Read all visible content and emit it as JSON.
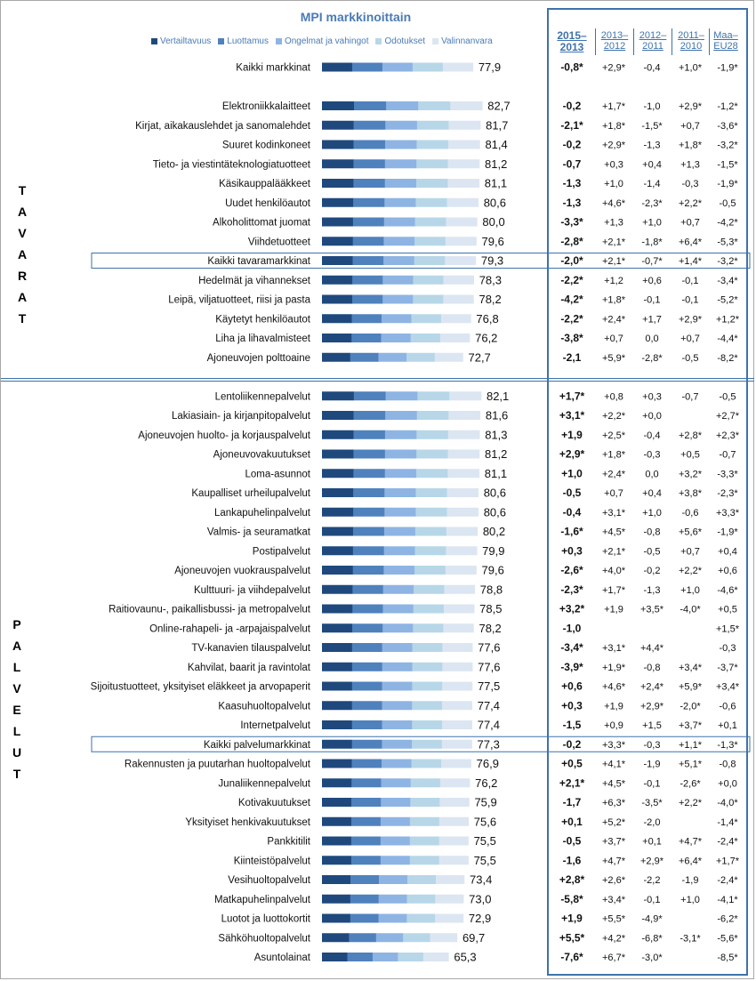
{
  "header": {
    "title": "MPI markkinoittain",
    "columns": [
      "2015–2013",
      "2013–2012",
      "2012–2011",
      "2011–2010",
      "Maa–EU28"
    ]
  },
  "legend": [
    {
      "name": "Vertailtavuus",
      "color": "#1f497d"
    },
    {
      "name": "Luottamus",
      "color": "#4f81bd"
    },
    {
      "name": "Ongelmat ja vahingot",
      "color": "#8eb4e3"
    },
    {
      "name": "Odotukset",
      "color": "#b7d7e8"
    },
    {
      "name": "Valinnanvara",
      "color": "#dce6f2"
    }
  ],
  "side_labels": {
    "goods": "TAVARAT",
    "services": "PALVELUT"
  },
  "chart_data": {
    "type": "bar",
    "title": "MPI markkinoittain",
    "series_names": [
      "Vertailtavuus",
      "Luottamus",
      "Ongelmat ja vahingot",
      "Odotukset",
      "Valinnanvara"
    ],
    "columns": [
      "2015–2013",
      "2013–2012",
      "2012–2011",
      "2011–2010",
      "Maa–EU28"
    ],
    "rows": [
      {
        "label": "Kaikki markkinat",
        "value": "77,9",
        "v": 77.9,
        "c": [
          "-0,8*",
          "+2,9*",
          "-0,4",
          "+1,0*",
          "-1,9*"
        ]
      },
      {
        "label": "",
        "value": "",
        "v": 0,
        "c": [
          "",
          "",
          "",
          "",
          ""
        ],
        "spacer": true
      },
      {
        "label": "Elektroniikkalaitteet",
        "value": "82,7",
        "v": 82.7,
        "c": [
          "-0,2",
          "+1,7*",
          "-1,0",
          "+2,9*",
          "-1,2*"
        ]
      },
      {
        "label": "Kirjat, aikakauslehdet ja sanomalehdet",
        "value": "81,7",
        "v": 81.7,
        "c": [
          "-2,1*",
          "+1,8*",
          "-1,5*",
          "+0,7",
          "-3,6*"
        ]
      },
      {
        "label": "Suuret kodinkoneet",
        "value": "81,4",
        "v": 81.4,
        "c": [
          "-0,2",
          "+2,9*",
          "-1,3",
          "+1,8*",
          "-3,2*"
        ]
      },
      {
        "label": "Tieto- ja viestintäteknologiatuotteet",
        "value": "81,2",
        "v": 81.2,
        "c": [
          "-0,7",
          "+0,3",
          "+0,4",
          "+1,3",
          "-1,5*"
        ]
      },
      {
        "label": "Käsikauppalääkkeet",
        "value": "81,1",
        "v": 81.1,
        "c": [
          "-1,3",
          "+1,0",
          "-1,4",
          "-0,3",
          "-1,9*"
        ]
      },
      {
        "label": "Uudet henkilöautot",
        "value": "80,6",
        "v": 80.6,
        "c": [
          "-1,3",
          "+4,6*",
          "-2,3*",
          "+2,2*",
          "-0,5"
        ]
      },
      {
        "label": "Alkoholittomat juomat",
        "value": "80,0",
        "v": 80.0,
        "c": [
          "-3,3*",
          "+1,3",
          "+1,0",
          "+0,7",
          "-4,2*"
        ]
      },
      {
        "label": "Viihdetuotteet",
        "value": "79,6",
        "v": 79.6,
        "c": [
          "-2,8*",
          "+2,1*",
          "-1,8*",
          "+6,4*",
          "-5,3*"
        ]
      },
      {
        "label": "Kaikki tavaramarkkinat",
        "value": "79,3",
        "v": 79.3,
        "c": [
          "-2,0*",
          "+2,1*",
          "-0,7*",
          "+1,4*",
          "-3,2*"
        ],
        "boxed": true
      },
      {
        "label": "Hedelmät ja vihannekset",
        "value": "78,3",
        "v": 78.3,
        "c": [
          "-2,2*",
          "+1,2",
          "+0,6",
          "-0,1",
          "-3,4*"
        ]
      },
      {
        "label": "Leipä, viljatuotteet, riisi ja pasta",
        "value": "78,2",
        "v": 78.2,
        "c": [
          "-4,2*",
          "+1,8*",
          "-0,1",
          "-0,1",
          "-5,2*"
        ]
      },
      {
        "label": "Käytetyt henkilöautot",
        "value": "76,8",
        "v": 76.8,
        "c": [
          "-2,2*",
          "+2,4*",
          "+1,7",
          "+2,9*",
          "+1,2*"
        ]
      },
      {
        "label": "Liha ja lihavalmisteet",
        "value": "76,2",
        "v": 76.2,
        "c": [
          "-3,8*",
          "+0,7",
          "0,0",
          "+0,7",
          "-4,4*"
        ]
      },
      {
        "label": "Ajoneuvojen polttoaine",
        "value": "72,7",
        "v": 72.7,
        "c": [
          "-2,1",
          "+5,9*",
          "-2,8*",
          "-0,5",
          "-8,2*"
        ]
      },
      {
        "label": "",
        "value": "",
        "v": 0,
        "c": [
          "",
          "",
          "",
          "",
          ""
        ],
        "spacer": true
      },
      {
        "label": "Lentoliikennepalvelut",
        "value": "82,1",
        "v": 82.1,
        "c": [
          "+1,7*",
          "+0,8",
          "+0,3",
          "-0,7",
          "-0,5"
        ]
      },
      {
        "label": "Lakiasiain- ja kirjanpitopalvelut",
        "value": "81,6",
        "v": 81.6,
        "c": [
          "+3,1*",
          "+2,2*",
          "+0,0",
          "",
          "+2,7*"
        ]
      },
      {
        "label": "Ajoneuvojen huolto- ja korjauspalvelut",
        "value": "81,3",
        "v": 81.3,
        "c": [
          "+1,9",
          "+2,5*",
          "-0,4",
          "+2,8*",
          "+2,3*"
        ]
      },
      {
        "label": "Ajoneuvovakuutukset",
        "value": "81,2",
        "v": 81.2,
        "c": [
          "+2,9*",
          "+1,8*",
          "-0,3",
          "+0,5",
          "-0,7"
        ]
      },
      {
        "label": "Loma-asunnot",
        "value": "81,1",
        "v": 81.1,
        "c": [
          "+1,0",
          "+2,4*",
          "0,0",
          "+3,2*",
          "-3,3*"
        ]
      },
      {
        "label": "Kaupalliset urheilupalvelut",
        "value": "80,6",
        "v": 80.6,
        "c": [
          "-0,5",
          "+0,7",
          "+0,4",
          "+3,8*",
          "-2,3*"
        ]
      },
      {
        "label": "Lankapuhelinpalvelut",
        "value": "80,6",
        "v": 80.6,
        "c": [
          "-0,4",
          "+3,1*",
          "+1,0",
          "-0,6",
          "+3,3*"
        ]
      },
      {
        "label": "Valmis- ja seuramatkat",
        "value": "80,2",
        "v": 80.2,
        "c": [
          "-1,6*",
          "+4,5*",
          "-0,8",
          "+5,6*",
          "-1,9*"
        ]
      },
      {
        "label": "Postipalvelut",
        "value": "79,9",
        "v": 79.9,
        "c": [
          "+0,3",
          "+2,1*",
          "-0,5",
          "+0,7",
          "+0,4"
        ]
      },
      {
        "label": "Ajoneuvojen vuokrauspalvelut",
        "value": "79,6",
        "v": 79.6,
        "c": [
          "-2,6*",
          "+4,0*",
          "-0,2",
          "+2,2*",
          "+0,6"
        ]
      },
      {
        "label": "Kulttuuri- ja viihdepalvelut",
        "value": "78,8",
        "v": 78.8,
        "c": [
          "-2,3*",
          "+1,7*",
          "-1,3",
          "+1,0",
          "-4,6*"
        ]
      },
      {
        "label": "Raitiovaunu-, paikallisbussi- ja metropalvelut",
        "value": "78,5",
        "v": 78.5,
        "c": [
          "+3,2*",
          "+1,9",
          "+3,5*",
          "-4,0*",
          "+0,5"
        ]
      },
      {
        "label": "Online-rahapeli- ja -arpajaispalvelut",
        "value": "78,2",
        "v": 78.2,
        "c": [
          "-1,0",
          "",
          "",
          "",
          "+1,5*"
        ]
      },
      {
        "label": "TV-kanavien tilauspalvelut",
        "value": "77,6",
        "v": 77.6,
        "c": [
          "-3,4*",
          "+3,1*",
          "+4,4*",
          "",
          "-0,3"
        ]
      },
      {
        "label": "Kahvilat, baarit ja ravintolat",
        "value": "77,6",
        "v": 77.6,
        "c": [
          "-3,9*",
          "+1,9*",
          "-0,8",
          "+3,4*",
          "-3,7*"
        ]
      },
      {
        "label": "Sijoitustuotteet, yksityiset eläkkeet ja arvopaperit",
        "value": "77,5",
        "v": 77.5,
        "c": [
          "+0,6",
          "+4,6*",
          "+2,4*",
          "+5,9*",
          "+3,4*"
        ]
      },
      {
        "label": "Kaasuhuoltopalvelut",
        "value": "77,4",
        "v": 77.4,
        "c": [
          "+0,3",
          "+1,9",
          "+2,9*",
          "-2,0*",
          "-0,6"
        ]
      },
      {
        "label": "Internetpalvelut",
        "value": "77,4",
        "v": 77.4,
        "c": [
          "-1,5",
          "+0,9",
          "+1,5",
          "+3,7*",
          "+0,1"
        ]
      },
      {
        "label": "Kaikki palvelumarkkinat",
        "value": "77,3",
        "v": 77.3,
        "c": [
          "-0,2",
          "+3,3*",
          "-0,3",
          "+1,1*",
          "-1,3*"
        ],
        "boxed": true
      },
      {
        "label": "Rakennusten ja puutarhan huoltopalvelut",
        "value": "76,9",
        "v": 76.9,
        "c": [
          "+0,5",
          "+4,1*",
          "-1,9",
          "+5,1*",
          "-0,8"
        ]
      },
      {
        "label": "Junaliikennepalvelut",
        "value": "76,2",
        "v": 76.2,
        "c": [
          "+2,1*",
          "+4,5*",
          "-0,1",
          "-2,6*",
          "+0,0"
        ]
      },
      {
        "label": "Kotivakuutukset",
        "value": "75,9",
        "v": 75.9,
        "c": [
          "-1,7",
          "+6,3*",
          "-3,5*",
          "+2,2*",
          "-4,0*"
        ]
      },
      {
        "label": "Yksityiset henkivakuutukset",
        "value": "75,6",
        "v": 75.6,
        "c": [
          "+0,1",
          "+5,2*",
          "-2,0",
          "",
          "-1,4*"
        ]
      },
      {
        "label": "Pankkitilit",
        "value": "75,5",
        "v": 75.5,
        "c": [
          "-0,5",
          "+3,7*",
          "+0,1",
          "+4,7*",
          "-2,4*"
        ]
      },
      {
        "label": "Kiinteistöpalvelut",
        "value": "75,5",
        "v": 75.5,
        "c": [
          "-1,6",
          "+4,7*",
          "+2,9*",
          "+6,4*",
          "+1,7*"
        ]
      },
      {
        "label": "Vesihuoltopalvelut",
        "value": "73,4",
        "v": 73.4,
        "c": [
          "+2,8*",
          "+2,6*",
          "-2,2",
          "-1,9",
          "-2,4*"
        ]
      },
      {
        "label": "Matkapuhelinpalvelut",
        "value": "73,0",
        "v": 73.0,
        "c": [
          "-5,8*",
          "+3,4*",
          "-0,1",
          "+1,0",
          "-4,1*"
        ]
      },
      {
        "label": "Luotot ja luottokortit",
        "value": "72,9",
        "v": 72.9,
        "c": [
          "+1,9",
          "+5,5*",
          "-4,9*",
          "",
          "-6,2*"
        ]
      },
      {
        "label": "Sähköhuoltopalvelut",
        "value": "69,7",
        "v": 69.7,
        "c": [
          "+5,5*",
          "+4,2*",
          "-6,8*",
          "-3,1*",
          "-5,6*"
        ]
      },
      {
        "label": "Asuntolainat",
        "value": "65,3",
        "v": 65.3,
        "c": [
          "-7,6*",
          "+6,7*",
          "-3,0*",
          "",
          "-8,5*"
        ]
      }
    ]
  }
}
